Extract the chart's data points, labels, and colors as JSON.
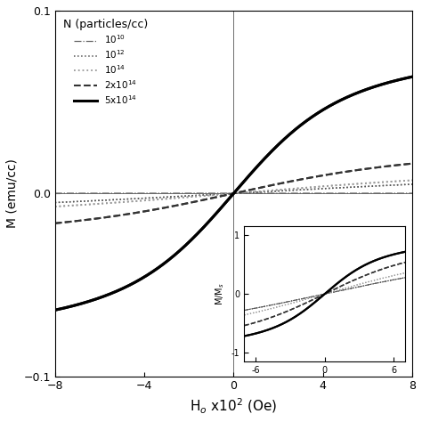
{
  "xlabel": "H$_o$ x10$^2$ (Oe)",
  "ylabel": "M (emu/cc)",
  "xlim": [
    -8,
    8
  ],
  "ylim": [
    -0.1,
    0.1
  ],
  "xticks": [
    -8,
    -4,
    0,
    4,
    8
  ],
  "yticks": [
    -0.1,
    0,
    0.1
  ],
  "background_color": "#ffffff",
  "legend_title": "N (particles/cc)",
  "curves": [
    {
      "label": "10$^{10}$",
      "style": "-.",
      "color": "#666666",
      "lw": 0.9,
      "Ms": 2e-06,
      "a": 800,
      "alpha_mf": 0.0
    },
    {
      "label": "10$^{12}$",
      "style": ":",
      "color": "#555555",
      "lw": 1.1,
      "Ms": 0.016,
      "a": 800,
      "alpha_mf": 0.0
    },
    {
      "label": "10$^{14}$",
      "style": ":",
      "color": "#999999",
      "lw": 1.3,
      "Ms": 0.018,
      "a": 600,
      "alpha_mf": 0.0
    },
    {
      "label": "2x10$^{14}$",
      "style": "--",
      "color": "#333333",
      "lw": 1.5,
      "Ms": 0.028,
      "a": 350,
      "alpha_mf": 0.0
    },
    {
      "label": "5x10$^{14}$",
      "style": "-",
      "color": "#000000",
      "lw": 2.2,
      "Ms": 0.085,
      "a": 200,
      "alpha_mf": 0.0
    }
  ],
  "inset_ylabel": "M/M$_s$",
  "inset_xtick_labels": [
    "-6",
    "0",
    "6"
  ]
}
